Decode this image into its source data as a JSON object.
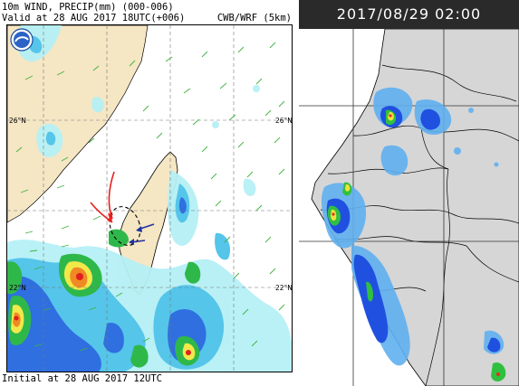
{
  "left_panel": {
    "title": "10m WIND, PRECIP(mm) (000-006)",
    "valid": "Valid at 28 AUG 2017 18UTC(+006)",
    "model": "CWB/WRF (5km)",
    "initial": "Initial at 28 AUG 2017 12UTC",
    "lat_labels": [
      "26°N",
      "26°N",
      "22°N",
      "22°N"
    ],
    "colors": {
      "land": "#f5e6c4",
      "sea": "#ffffff",
      "precip_light": "#b5f0f5",
      "precip_med": "#55c5ea",
      "precip_blue": "#2f6fe0",
      "precip_green": "#2fb84a",
      "precip_yellow": "#f2e84a",
      "precip_orange": "#f08a24",
      "precip_red": "#e02020",
      "wind_barb": "#3fb23f",
      "annotation_red": "#e82020",
      "annotation_blue": "#2030a0"
    },
    "icons": [
      "agency-logo-icon"
    ]
  },
  "right_panel": {
    "timestamp": "2017/08/29 02:00",
    "colors": {
      "header_bg": "#2a2a2a",
      "header_text": "#ffffff",
      "land": "#d6d6d6",
      "sea": "#ffffff",
      "grid": "#333333",
      "radar_light": "#60b0f0",
      "radar_blue": "#2050e0",
      "radar_green": "#30c040",
      "radar_yellow": "#f0e040",
      "radar_red": "#e03020"
    }
  }
}
